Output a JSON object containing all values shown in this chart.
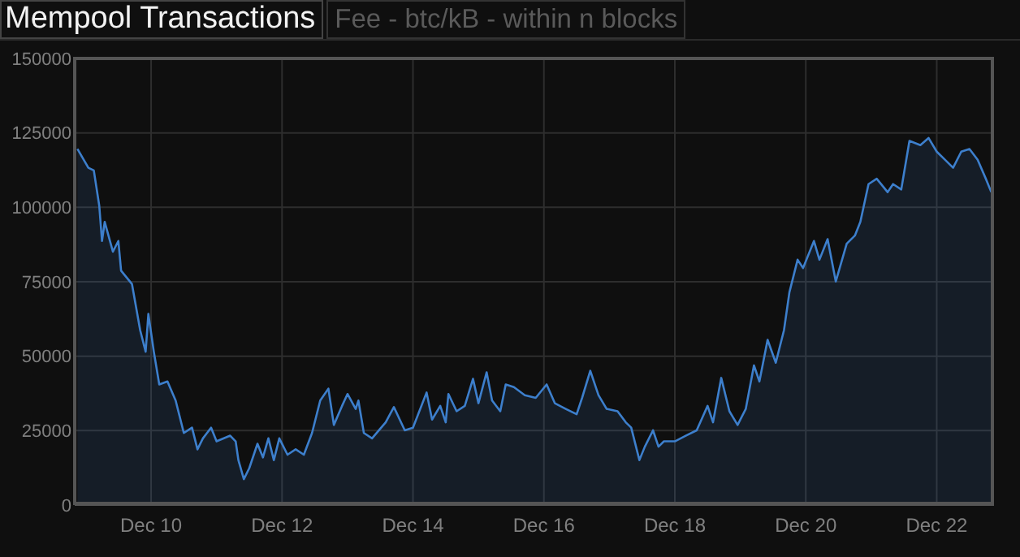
{
  "chart_data": {
    "type": "area",
    "title": "Mempool Transactions",
    "annotations": [
      "Fee - btc/kB - within n blocks"
    ],
    "xlim": [
      "--12-08T20:00",
      "--12-22T21:00"
    ],
    "xticks": [
      {
        "value": "--12-10",
        "label": "Dec 10"
      },
      {
        "value": "--12-12",
        "label": "Dec 12"
      },
      {
        "value": "--12-14",
        "label": "Dec 14"
      },
      {
        "value": "--12-16",
        "label": "Dec 16"
      },
      {
        "value": "--12-18",
        "label": "Dec 18"
      },
      {
        "value": "--12-20",
        "label": "Dec 20"
      },
      {
        "value": "--12-22",
        "label": "Dec 22"
      }
    ],
    "ylim": [
      0,
      150000
    ],
    "yticks": [
      0,
      25000,
      50000,
      75000,
      100000,
      125000,
      150000
    ],
    "grid": true,
    "series": [
      {
        "color": "#3d7fcc",
        "x": [
          "--12-08T21:00",
          "--12-09T01:00",
          "--12-09T03:00",
          "--12-09T05:00",
          "--12-09T06:00",
          "--12-09T07:00",
          "--12-09T10:00",
          "--12-09T12:00",
          "--12-09T13:00",
          "--12-09T17:00",
          "--12-09T20:00",
          "--12-09T22:00",
          "--12-09T23:00",
          "--12-10T01:00",
          "--12-10T03:00",
          "--12-10T06:00",
          "--12-10T09:00",
          "--12-10T12:00",
          "--12-10T15:00",
          "--12-10T17:00",
          "--12-10T19:00",
          "--12-10T22:00",
          "--12-11T00:00",
          "--12-11T05:00",
          "--12-11T07:00",
          "--12-11T08:00",
          "--12-11T10:00",
          "--12-11T12:00",
          "--12-11T15:00",
          "--12-11T17:00",
          "--12-11T19:00",
          "--12-11T21:00",
          "--12-11T23:00",
          "--12-12T02:00",
          "--12-12T05:00",
          "--12-12T08:00",
          "--12-12T11:00",
          "--12-12T14:00",
          "--12-12T17:00",
          "--12-12T19:00",
          "--12-12T22:00",
          "--12-13T00:00",
          "--12-13T03:00",
          "--12-13T04:00",
          "--12-13T06:00",
          "--12-13T09:00",
          "--12-13T14:00",
          "--12-13T17:00",
          "--12-13T21:00",
          "--12-14T00:00",
          "--12-14T05:00",
          "--12-14T07:00",
          "--12-14T10:00",
          "--12-14T12:00",
          "--12-14T13:00",
          "--12-14T16:00",
          "--12-14T19:00",
          "--12-14T22:00",
          "--12-15T00:00",
          "--12-15T03:00",
          "--12-15T05:00",
          "--12-15T08:00",
          "--12-15T10:00",
          "--12-15T13:00",
          "--12-15T17:00",
          "--12-15T21:00",
          "--12-16T01:00",
          "--12-16T04:00",
          "--12-16T08:00",
          "--12-16T12:00",
          "--12-16T14:00",
          "--12-16T17:00",
          "--12-16T20:00",
          "--12-16T23:00",
          "--12-17T03:00",
          "--12-17T06:00",
          "--12-17T08:00",
          "--12-17T11:00",
          "--12-17T13:00",
          "--12-17T16:00",
          "--12-17T18:00",
          "--12-17T20:00",
          "--12-18T00:00",
          "--12-18T04:00",
          "--12-18T08:00",
          "--12-18T12:00",
          "--12-18T14:00",
          "--12-18T17:00",
          "--12-18T20:00",
          "--12-18T23:00",
          "--12-19T02:00",
          "--12-19T05:00",
          "--12-19T07:00",
          "--12-19T10:00",
          "--12-19T13:00",
          "--12-19T16:00",
          "--12-19T18:00",
          "--12-19T21:00",
          "--12-19T23:00",
          "--12-20T03:00",
          "--12-20T05:00",
          "--12-20T08:00",
          "--12-20T11:00",
          "--12-20T15:00",
          "--12-20T18:00",
          "--12-20T20:00",
          "--12-20T23:00",
          "--12-21T02:00",
          "--12-21T06:00",
          "--12-21T08:00",
          "--12-21T11:00",
          "--12-21T14:00",
          "--12-21T18:00",
          "--12-21T21:00",
          "--12-22T00:00",
          "--12-22T03:00",
          "--12-22T06:00",
          "--12-22T09:00",
          "--12-22T12:00",
          "--12-22T15:00",
          "--12-22T18:00",
          "--12-22T20:00"
        ],
        "values": [
          119600,
          113300,
          112400,
          100500,
          88700,
          95100,
          85100,
          88700,
          78700,
          74200,
          58700,
          51500,
          64200,
          51500,
          40500,
          41500,
          35100,
          24200,
          26000,
          18700,
          22400,
          26000,
          21400,
          23300,
          21400,
          15100,
          8700,
          12400,
          20600,
          16000,
          22400,
          15100,
          22400,
          16900,
          18700,
          16900,
          24200,
          35100,
          39100,
          26900,
          33300,
          37300,
          32300,
          35100,
          24200,
          22400,
          27800,
          32900,
          25100,
          26000,
          37800,
          28700,
          33300,
          27800,
          37300,
          31500,
          33300,
          42400,
          34200,
          44600,
          35100,
          31500,
          40500,
          39600,
          36900,
          36000,
          40500,
          34200,
          32300,
          30500,
          36000,
          45100,
          36900,
          32300,
          31500,
          27800,
          26000,
          15100,
          19600,
          25100,
          19600,
          21400,
          21400,
          23300,
          25100,
          33300,
          27800,
          42700,
          31500,
          26900,
          32300,
          46900,
          41500,
          55500,
          47800,
          58700,
          71500,
          82400,
          79600,
          88700,
          82400,
          89300,
          75100,
          87800,
          90500,
          95100,
          107800,
          109600,
          105100,
          107800,
          106000,
          122300,
          120900,
          123300,
          118700,
          116000,
          113300,
          118700,
          119600,
          116000,
          109600,
          105100
        ]
      }
    ]
  }
}
